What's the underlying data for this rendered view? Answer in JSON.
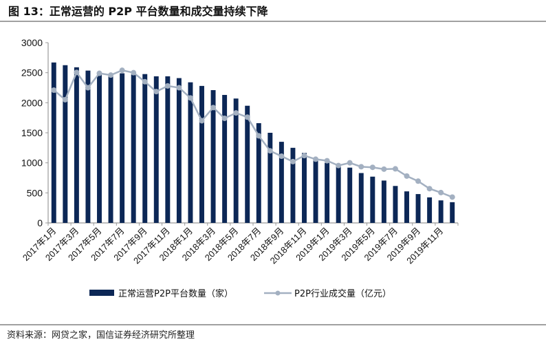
{
  "title": "图 13：正常运营的 P2P 平台数量和成交量持续下降",
  "source": "资料来源：网贷之家，国信证券经济研究所整理",
  "chart_data": {
    "type": "bar+line",
    "title": "",
    "ylim": [
      0,
      3000
    ],
    "yticks": [
      0,
      500,
      1000,
      1500,
      2000,
      2500,
      3000
    ],
    "grid": false,
    "legend_placement": "bottom",
    "categories": [
      "2017年1月",
      "2017年2月",
      "2017年3月",
      "2017年4月",
      "2017年5月",
      "2017年6月",
      "2017年7月",
      "2017年8月",
      "2017年9月",
      "2017年10月",
      "2017年11月",
      "2017年12月",
      "2018年1月",
      "2018年2月",
      "2018年3月",
      "2018年4月",
      "2018年5月",
      "2018年6月",
      "2018年7月",
      "2018年8月",
      "2018年9月",
      "2018年10月",
      "2018年11月",
      "2018年12月",
      "2019年1月",
      "2019年2月",
      "2019年3月",
      "2019年4月",
      "2019年5月",
      "2019年6月",
      "2019年7月",
      "2019年8月",
      "2019年9月",
      "2019年10月",
      "2019年11月",
      "2019年12月"
    ],
    "tick_labels": [
      "2017年1月",
      "2017年3月",
      "2017年5月",
      "2017年7月",
      "2017年9月",
      "2017年11月",
      "2018年1月",
      "2018年3月",
      "2018年5月",
      "2018年7月",
      "2018年9月",
      "2018年11月",
      "2019年1月",
      "2019年3月",
      "2019年5月",
      "2019年7月",
      "2019年9月",
      "2019年11月"
    ],
    "series": [
      {
        "name": "正常运营P2P平台数量（家）",
        "type": "bar",
        "color": "#0c2756",
        "values": [
          2670,
          2625,
          2590,
          2535,
          2470,
          2450,
          2490,
          2470,
          2477,
          2440,
          2440,
          2410,
          2340,
          2280,
          2210,
          2130,
          2070,
          1950,
          1660,
          1500,
          1350,
          1250,
          1165,
          1040,
          1000,
          935,
          920,
          830,
          770,
          705,
          615,
          525,
          480,
          425,
          375,
          345
        ]
      },
      {
        "name": "P2P行业成交量（亿元）",
        "type": "line",
        "color": "#a3b0c1",
        "values": [
          2210,
          2050,
          2505,
          2250,
          2490,
          2460,
          2540,
          2500,
          2350,
          2185,
          2280,
          2250,
          2080,
          1700,
          1920,
          1740,
          1830,
          1760,
          1450,
          1200,
          1110,
          1020,
          1120,
          1060,
          1035,
          955,
          1000,
          935,
          925,
          895,
          900,
          780,
          695,
          570,
          505,
          430
        ]
      }
    ]
  }
}
